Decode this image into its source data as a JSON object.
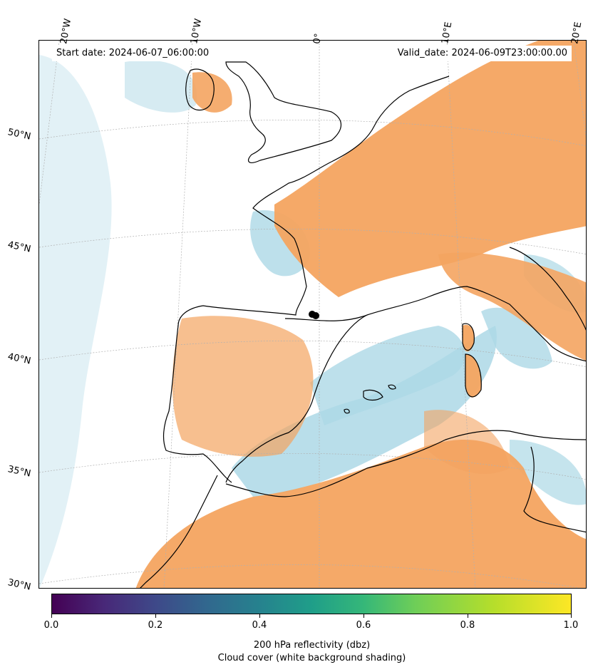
{
  "header": {
    "start_date": "Start date: 2024-06-07_06:00:00",
    "valid_date": "Valid_date: 2024-06-09T23:00:00.00"
  },
  "longitude_labels": [
    "20°W",
    "10°W",
    "0°",
    "10°E",
    "20°E"
  ],
  "latitude_labels": [
    "50°N",
    "45°N",
    "40°N",
    "35°N",
    "30°N"
  ],
  "colorbar": {
    "colormap": "viridis",
    "ticks": [
      "0.0",
      "0.2",
      "0.4",
      "0.6",
      "0.8",
      "1.0"
    ],
    "label_line1": "200 hPa reflectivity (dbz)",
    "label_line2": "Cloud cover (white background shading)"
  },
  "colors": {
    "reflectivity_orange": "#f4a460",
    "cloud_blue": "#add8e6",
    "coastline": "#000000",
    "gridline": "#b0b0b0"
  }
}
